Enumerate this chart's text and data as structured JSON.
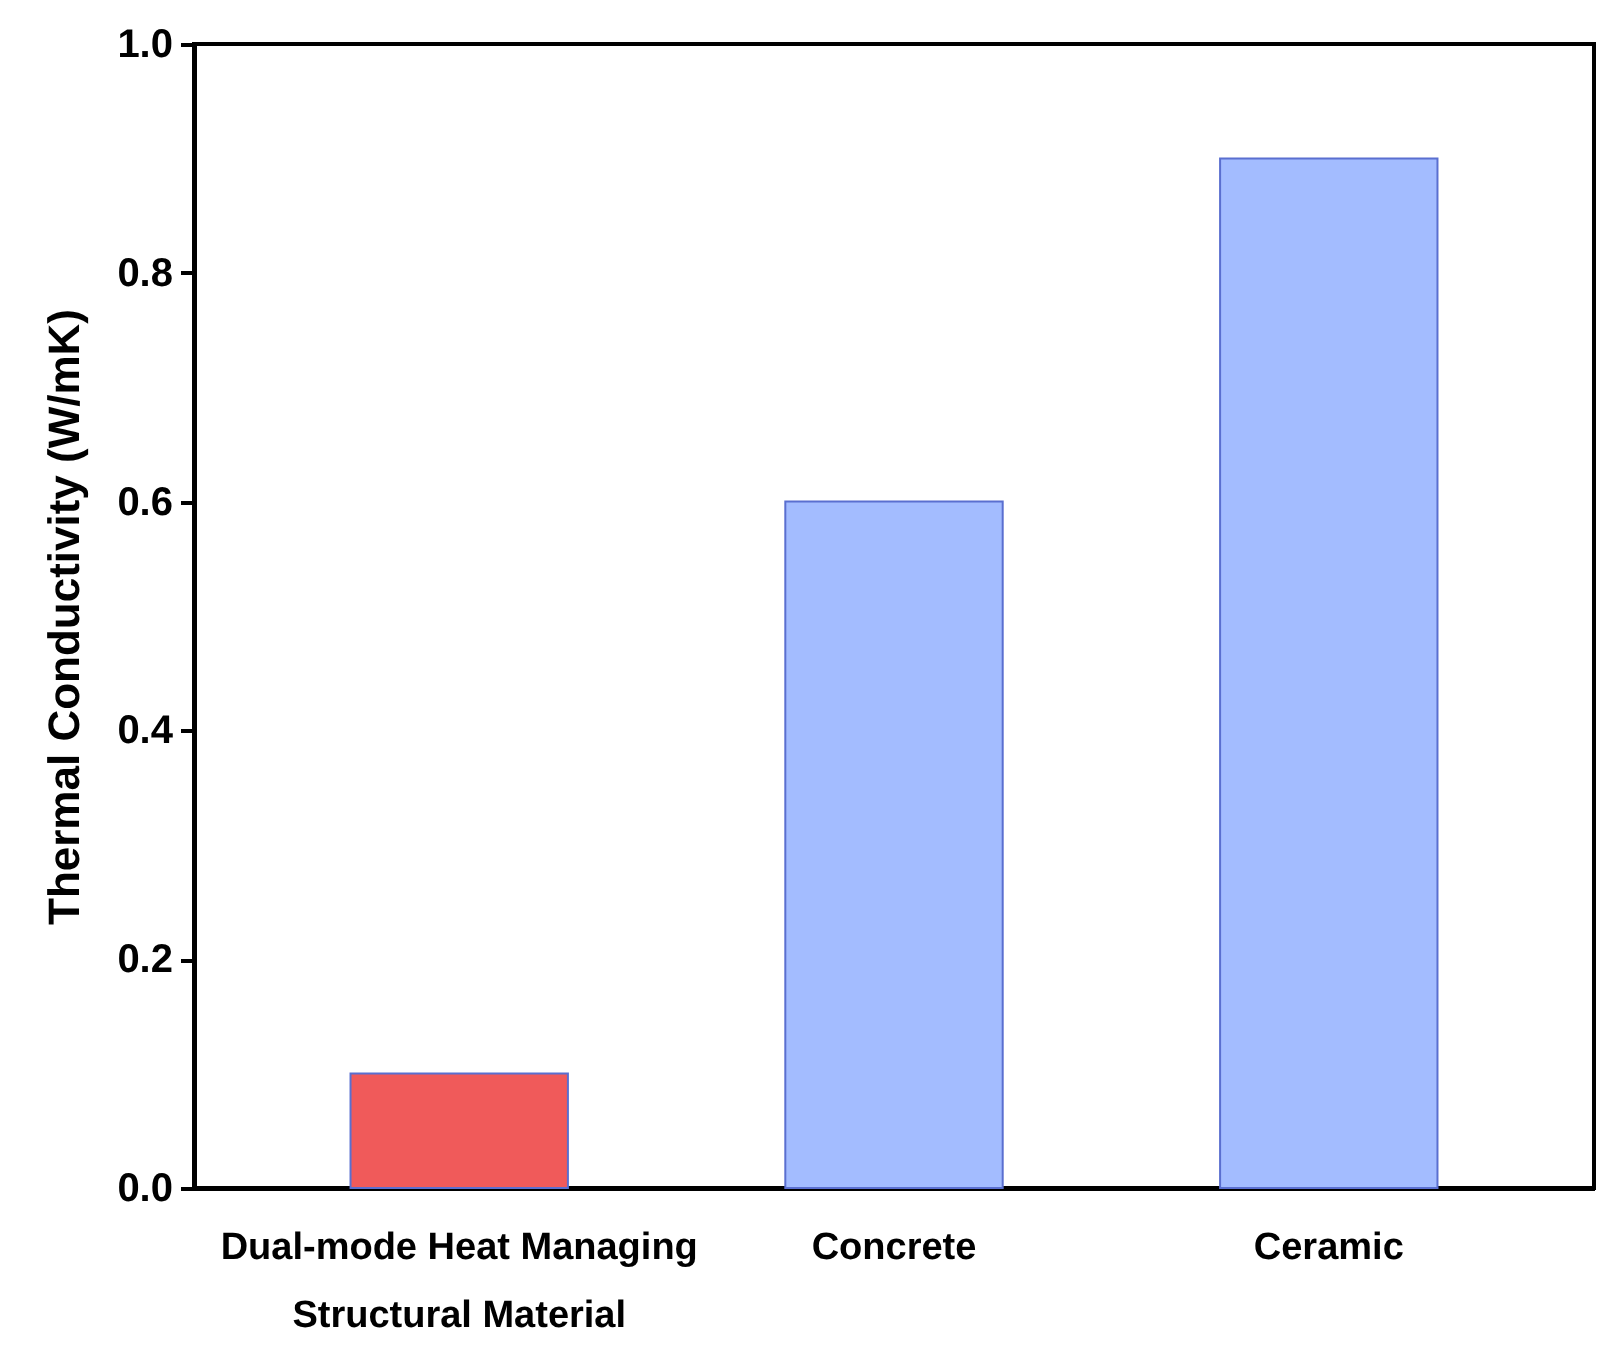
{
  "chart_data": {
    "type": "bar",
    "ylabel": "Thermal Conductivity (W/mK)",
    "categories": [
      "Dual-mode Heat Managing Structural Material",
      "Concrete",
      "Ceramic"
    ],
    "values": [
      0.1,
      0.6,
      0.9
    ],
    "colors": [
      "#f05a5a",
      "#a3bcff",
      "#a3bcff"
    ],
    "ylim": [
      0,
      1.0
    ],
    "yticks": [
      {
        "value": 0,
        "label": "0.0"
      },
      {
        "value": 0.2,
        "label": "0.2"
      },
      {
        "value": 0.4,
        "label": "0.4"
      },
      {
        "value": 0.6,
        "label": "0.6"
      },
      {
        "value": 0.8,
        "label": "0.8"
      },
      {
        "value": 1,
        "label": "1.0"
      }
    ],
    "grid": false
  }
}
